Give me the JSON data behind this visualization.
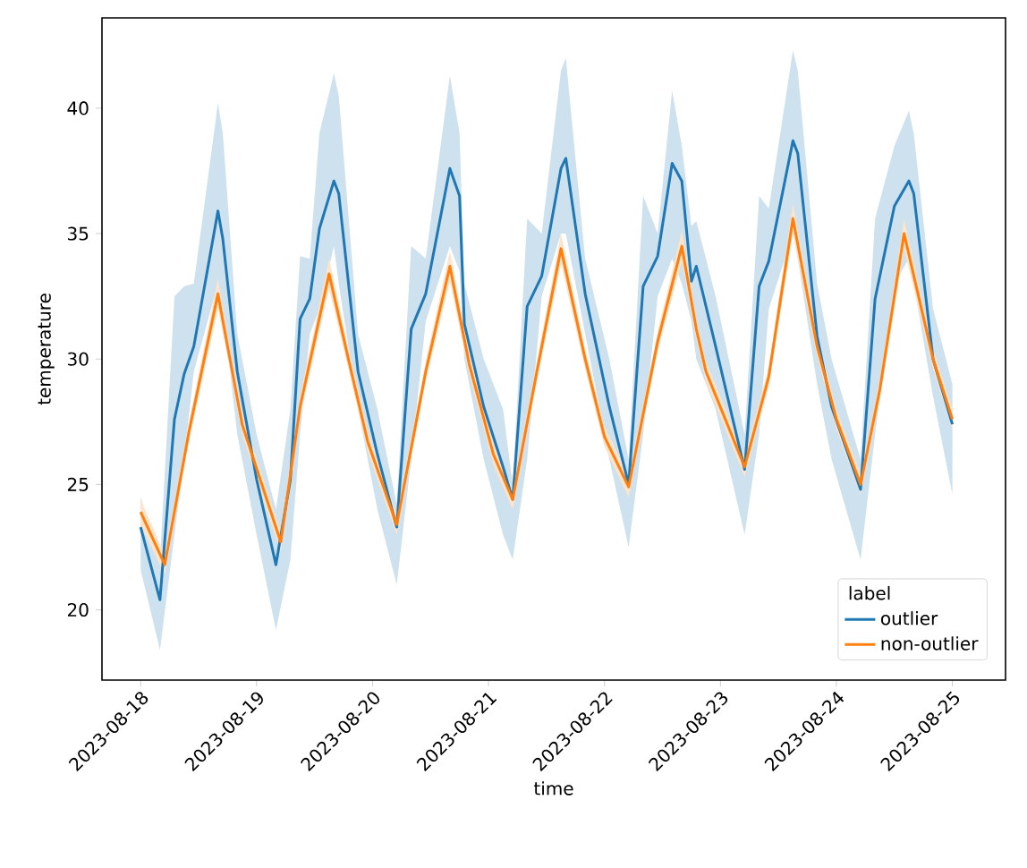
{
  "chart_data": {
    "type": "line",
    "xlabel": "time",
    "ylabel": "temperature",
    "legend_title": "label",
    "legend": "bottom right",
    "line_style": "solid",
    "xlim": [
      "2023-08-17T16:00",
      "2023-08-25T11:00"
    ],
    "xticks": [
      "2023-08-18",
      "2023-08-19",
      "2023-08-20",
      "2023-08-21",
      "2023-08-22",
      "2023-08-23",
      "2023-08-24",
      "2023-08-25"
    ],
    "ylim": [
      17.2,
      43.6
    ],
    "yticks": [
      20,
      25,
      30,
      35,
      40
    ],
    "series": [
      {
        "name": "outlier",
        "color": "#1f77b4",
        "x": [
          "2023-08-18T00:00",
          "2023-08-18T04:00",
          "2023-08-18T07:00",
          "2023-08-18T09:00",
          "2023-08-18T11:00",
          "2023-08-18T16:00",
          "2023-08-18T17:00",
          "2023-08-18T20:00",
          "2023-08-19T00:00",
          "2023-08-19T04:00",
          "2023-08-19T07:00",
          "2023-08-19T09:00",
          "2023-08-19T11:00",
          "2023-08-19T13:00",
          "2023-08-19T16:00",
          "2023-08-19T17:00",
          "2023-08-19T21:00",
          "2023-08-20T01:00",
          "2023-08-20T05:00",
          "2023-08-20T08:00",
          "2023-08-20T11:00",
          "2023-08-20T16:00",
          "2023-08-20T18:00",
          "2023-08-20T19:00",
          "2023-08-20T23:00",
          "2023-08-21T03:00",
          "2023-08-21T05:00",
          "2023-08-21T08:00",
          "2023-08-21T11:00",
          "2023-08-21T15:00",
          "2023-08-21T16:00",
          "2023-08-21T20:00",
          "2023-08-22T01:00",
          "2023-08-22T05:00",
          "2023-08-22T08:00",
          "2023-08-22T11:00",
          "2023-08-22T14:00",
          "2023-08-22T16:00",
          "2023-08-22T18:00",
          "2023-08-22T19:00",
          "2023-08-22T23:00",
          "2023-08-23T05:00",
          "2023-08-23T08:00",
          "2023-08-23T10:00",
          "2023-08-23T15:00",
          "2023-08-23T16:00",
          "2023-08-23T20:00",
          "2023-08-23T23:00",
          "2023-08-24T05:00",
          "2023-08-24T08:00",
          "2023-08-24T12:00",
          "2023-08-24T15:00",
          "2023-08-24T16:00",
          "2023-08-24T20:00",
          "2023-08-25T00:00"
        ],
        "values": [
          23.3,
          20.4,
          27.6,
          29.4,
          30.5,
          35.9,
          34.8,
          29.5,
          25.2,
          21.8,
          25.2,
          31.6,
          32.4,
          35.2,
          37.1,
          36.6,
          29.5,
          26.2,
          23.3,
          31.2,
          32.6,
          37.6,
          36.5,
          31.4,
          28.1,
          25.7,
          24.4,
          32.1,
          33.3,
          37.6,
          38.0,
          32.6,
          28.1,
          25.0,
          32.9,
          34.1,
          37.8,
          37.1,
          33.1,
          33.7,
          30.5,
          25.6,
          32.9,
          33.9,
          38.7,
          38.2,
          30.9,
          28.1,
          24.8,
          32.4,
          36.1,
          37.1,
          36.6,
          30.0,
          27.4
        ],
        "lower": [
          21.6,
          18.4,
          23,
          26,
          29.5,
          33,
          32,
          27,
          23,
          19.2,
          22,
          27,
          31,
          32,
          34.5,
          33,
          28,
          24,
          21,
          26,
          31.5,
          34.5,
          33.5,
          30,
          26,
          23,
          22,
          26,
          32.5,
          35,
          35,
          31,
          26,
          22.5,
          27,
          32.5,
          34,
          33,
          31.5,
          30,
          28,
          23,
          27,
          32,
          35,
          34,
          29,
          26,
          22,
          27,
          33,
          34,
          33,
          28.5,
          24.6
        ],
        "upper": [
          24.5,
          22,
          32.5,
          32.9,
          33,
          40.2,
          39,
          31,
          27,
          24,
          28,
          34.1,
          34,
          39,
          41.4,
          40.5,
          31,
          28,
          24.2,
          34.5,
          34,
          41.3,
          39,
          33,
          30,
          28,
          25,
          35.6,
          35,
          41.5,
          42,
          34,
          30,
          26,
          36.5,
          35,
          40.7,
          38.5,
          35.3,
          35.5,
          32.5,
          27,
          36.5,
          36,
          42.3,
          41.5,
          33,
          30,
          26,
          35.6,
          38.5,
          39.9,
          39,
          32,
          29
        ]
      },
      {
        "name": "non-outlier",
        "color": "#ff7f0e",
        "x": [
          "2023-08-18T00:00",
          "2023-08-18T05:00",
          "2023-08-18T10:00",
          "2023-08-18T16:00",
          "2023-08-18T18:00",
          "2023-08-18T21:00",
          "2023-08-19T05:00",
          "2023-08-19T09:00",
          "2023-08-19T15:00",
          "2023-08-19T19:00",
          "2023-08-19T23:00",
          "2023-08-20T05:00",
          "2023-08-20T11:00",
          "2023-08-20T16:00",
          "2023-08-20T20:00",
          "2023-08-21T01:00",
          "2023-08-21T05:00",
          "2023-08-21T10:00",
          "2023-08-21T15:00",
          "2023-08-21T20:00",
          "2023-08-22T00:00",
          "2023-08-22T05:00",
          "2023-08-22T11:00",
          "2023-08-22T16:00",
          "2023-08-22T19:00",
          "2023-08-22T21:00",
          "2023-08-23T05:00",
          "2023-08-23T10:00",
          "2023-08-23T15:00",
          "2023-08-23T20:00",
          "2023-08-24T00:00",
          "2023-08-24T05:00",
          "2023-08-24T09:00",
          "2023-08-24T14:00",
          "2023-08-24T20:00",
          "2023-08-25T00:00"
        ],
        "values": [
          23.9,
          21.8,
          27.1,
          32.6,
          30.5,
          27.4,
          22.7,
          28.1,
          33.4,
          30.0,
          26.7,
          23.4,
          29.5,
          33.7,
          29.8,
          26.2,
          24.4,
          29.5,
          34.4,
          30.0,
          26.9,
          24.9,
          30.7,
          34.5,
          31.2,
          29.5,
          25.7,
          29.3,
          35.6,
          30.5,
          27.6,
          25.0,
          28.8,
          35.0,
          30.0,
          27.6
        ],
        "lower": [
          23.4,
          21.4,
          26.7,
          32.0,
          30.1,
          27.0,
          22.3,
          27.7,
          32.8,
          29.6,
          26.3,
          23.0,
          29.1,
          33.1,
          29.4,
          25.8,
          24.0,
          29.1,
          33.8,
          29.6,
          26.5,
          24.5,
          30.3,
          33.9,
          30.8,
          29.1,
          25.3,
          28.9,
          35.0,
          30.1,
          27.2,
          24.6,
          28.4,
          34.4,
          29.6,
          27.2
        ],
        "upper": [
          24.4,
          22.2,
          27.5,
          33.2,
          30.9,
          27.8,
          23.1,
          28.5,
          34.0,
          30.4,
          27.1,
          23.8,
          29.9,
          34.3,
          30.2,
          26.6,
          24.8,
          29.9,
          35.0,
          30.4,
          27.3,
          25.3,
          31.1,
          35.1,
          31.6,
          29.9,
          26.1,
          29.7,
          36.2,
          30.9,
          28.0,
          25.4,
          29.2,
          35.6,
          30.4,
          28.0
        ]
      }
    ]
  }
}
